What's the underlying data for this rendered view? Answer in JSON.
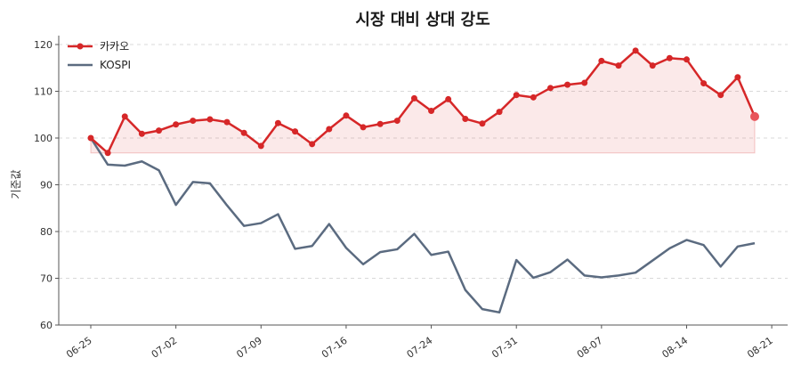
{
  "chart_data": {
    "type": "line",
    "title": "시장 대비 상대 강도",
    "xlabel": "",
    "ylabel": "기준값",
    "ylim": [
      60,
      122
    ],
    "yticks": [
      60,
      70,
      80,
      90,
      100,
      110,
      120
    ],
    "xtick_labels": [
      "06-25",
      "07-02",
      "07-09",
      "07-16",
      "07-24",
      "07-31",
      "08-07",
      "08-14",
      "08-21"
    ],
    "xtick_index": [
      0,
      5,
      10,
      15,
      20,
      25,
      30,
      35,
      40
    ],
    "x": [
      "06-25",
      "06-26",
      "06-27",
      "06-28",
      "06-29",
      "07-02",
      "07-03",
      "07-04",
      "07-05",
      "07-08",
      "07-09",
      "07-10",
      "07-11",
      "07-12",
      "07-15",
      "07-16",
      "07-17",
      "07-18",
      "07-19",
      "07-22",
      "07-24",
      "07-25",
      "07-26",
      "07-29",
      "07-30",
      "07-31",
      "08-01",
      "08-02",
      "08-05",
      "08-06",
      "08-07",
      "08-08",
      "08-09",
      "08-12",
      "08-13",
      "08-14",
      "08-16",
      "08-19",
      "08-20",
      "08-21",
      "08-22"
    ],
    "grid": true,
    "legend_position": "top-left",
    "series": [
      {
        "name": "카카오",
        "color": "#d62728",
        "marker": true,
        "fill_baseline": 96.8,
        "values": [
          100.0,
          96.8,
          104.6,
          100.9,
          101.6,
          102.9,
          103.7,
          104.0,
          103.4,
          101.1,
          98.3,
          103.2,
          101.4,
          98.7,
          101.9,
          104.8,
          102.3,
          103.0,
          103.7,
          108.5,
          105.8,
          108.3,
          104.1,
          103.1,
          105.6,
          109.2,
          108.7,
          110.7,
          111.4,
          111.8,
          116.5,
          115.5,
          118.7,
          115.5,
          117.1,
          116.8,
          111.7,
          109.2,
          113.0,
          104.6,
          null
        ]
      },
      {
        "name": "KOSPI",
        "color": "#5b6b80",
        "marker": false,
        "values": [
          100.0,
          94.3,
          94.1,
          95.0,
          93.1,
          85.7,
          90.6,
          90.3,
          85.6,
          81.2,
          81.8,
          83.7,
          76.3,
          76.9,
          81.6,
          76.5,
          73.0,
          75.6,
          76.2,
          79.5,
          75.0,
          75.7,
          67.5,
          63.4,
          62.7,
          73.9,
          70.1,
          71.3,
          74.0,
          70.6,
          70.2,
          70.6,
          71.2,
          73.8,
          76.4,
          78.2,
          77.1,
          72.5,
          76.8,
          77.5,
          null
        ]
      }
    ]
  }
}
